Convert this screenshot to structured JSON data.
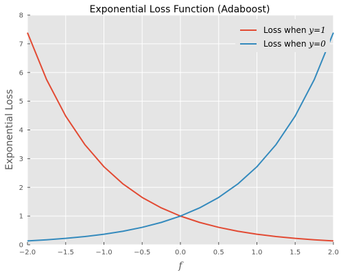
{
  "chart_data": {
    "type": "line",
    "title": "Exponential Loss Function (Adaboost)",
    "xlabel": "f",
    "ylabel": "Exponential Loss",
    "xlim": [
      -2.0,
      2.0
    ],
    "ylim": [
      0,
      8
    ],
    "x_ticks": [
      -2.0,
      -1.5,
      -1.0,
      -0.5,
      0.0,
      0.5,
      1.0,
      1.5,
      2.0
    ],
    "x_tick_labels": [
      "−2.0",
      "−1.5",
      "−1.0",
      "−0.5",
      "0.0",
      "0.5",
      "1.0",
      "1.5",
      "2.0"
    ],
    "y_ticks": [
      0,
      1,
      2,
      3,
      4,
      5,
      6,
      7,
      8
    ],
    "y_tick_labels": [
      "0",
      "1",
      "2",
      "3",
      "4",
      "5",
      "6",
      "7",
      "8"
    ],
    "grid": true,
    "legend_position": "top-right",
    "x": [
      -2.0,
      -1.75,
      -1.5,
      -1.25,
      -1.0,
      -0.75,
      -0.5,
      -0.25,
      0.0,
      0.25,
      0.5,
      0.75,
      1.0,
      1.25,
      1.5,
      1.75,
      2.0
    ],
    "series": [
      {
        "name_prefix": "Loss when ",
        "name_math": "y=1",
        "color": "#E24A33",
        "values": [
          7.389,
          5.755,
          4.482,
          3.49,
          2.718,
          2.117,
          1.649,
          1.284,
          1.0,
          0.779,
          0.607,
          0.472,
          0.368,
          0.287,
          0.223,
          0.174,
          0.135
        ]
      },
      {
        "name_prefix": "Loss when ",
        "name_math": "y=0",
        "color": "#348ABD",
        "values": [
          0.135,
          0.174,
          0.223,
          0.287,
          0.368,
          0.472,
          0.607,
          0.779,
          1.0,
          1.284,
          1.649,
          2.117,
          2.718,
          3.49,
          4.482,
          5.755,
          7.389
        ]
      }
    ],
    "colors": {
      "plot_background": "#E5E5E5",
      "grid": "#FFFFFF",
      "tick_text": "#555555"
    }
  }
}
